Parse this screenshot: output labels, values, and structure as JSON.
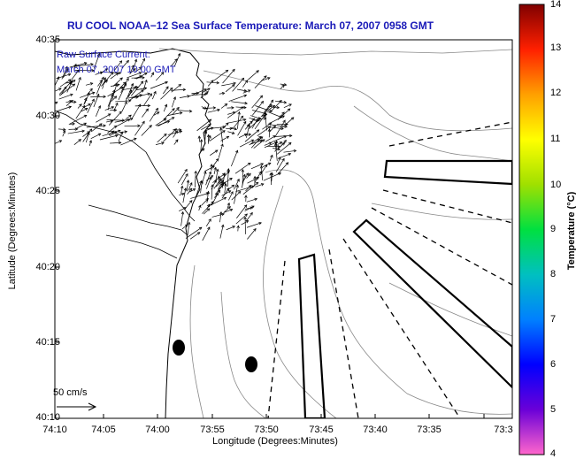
{
  "title": "RU COOL  NOAA−12  Sea Surface Temperature:  March 07, 2007 0958 GMT",
  "current_label_line1": "Raw Surface Current:",
  "current_label_line2": "March 07, 2007 10:00 GMT",
  "scale_label": "50 cm/s",
  "x_axis_label": "Longitude (Degrees:Minutes)",
  "y_axis_label": "Latitude (Degrees:Minutes)",
  "colorbar_label": "Temperature (°C)",
  "y_ticks": [
    "40:35",
    "40:30",
    "40:25",
    "40:20",
    "40:15",
    "40:10"
  ],
  "x_ticks": [
    "74:10",
    "74:05",
    "74:00",
    "73:55",
    "73:50",
    "73:45",
    "73:40",
    "73:35",
    "73:3"
  ],
  "colorbar_ticks": [
    "14",
    "13",
    "12",
    "11",
    "10",
    "9",
    "8",
    "7",
    "6",
    "5",
    "4"
  ],
  "colorbar_colors": [
    "#ff66cc",
    "#6a00d8",
    "#0000ff",
    "#0080ff",
    "#00c0c0",
    "#00e040",
    "#a0e000",
    "#ffff00",
    "#ffa000",
    "#ff2000",
    "#800000"
  ]
}
